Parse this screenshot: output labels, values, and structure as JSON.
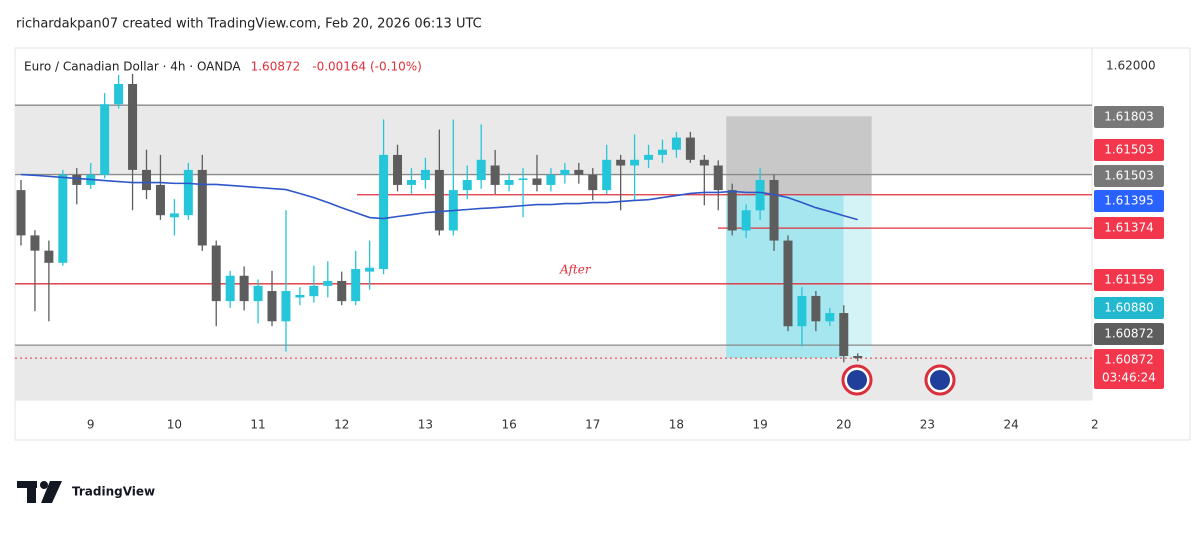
{
  "header": "richardakpan07 created with TradingView.com, Feb 20, 2026 06:13 UTC",
  "logo": "TradingView",
  "chart_data": {
    "type": "candlestick",
    "title": "Euro / Canadian Dollar · 4h · OANDA",
    "last_price": {
      "value": 1.60872,
      "label": "1.60872"
    },
    "change": "-0.00164 (-0.10%)",
    "annotation": "After",
    "up_color": "#26c6da",
    "down_color": "#5d5d5d",
    "xlim": [
      -0.43,
      76.8
    ],
    "ylim": [
      1.6071,
      1.6207
    ],
    "grid": false,
    "xticks": [
      {
        "value": 5,
        "label": "9"
      },
      {
        "value": 11,
        "label": "10"
      },
      {
        "value": 17,
        "label": "11"
      },
      {
        "value": 23,
        "label": "12"
      },
      {
        "value": 29,
        "label": "13"
      },
      {
        "value": 35,
        "label": "16"
      },
      {
        "value": 41,
        "label": "17"
      },
      {
        "value": 47,
        "label": "18"
      },
      {
        "value": 53,
        "label": "19"
      },
      {
        "value": 59,
        "label": "20"
      },
      {
        "value": 65,
        "label": "23"
      },
      {
        "value": 71,
        "label": "24"
      },
      {
        "value": 77,
        "label": "2"
      }
    ],
    "yticks": [
      {
        "value": 1.62,
        "label": "1.62000"
      }
    ],
    "open": [
      1.61521,
      1.61346,
      1.61287,
      1.6124,
      1.6158,
      1.61541,
      1.6158,
      1.61853,
      1.61931,
      1.61599,
      1.61541,
      1.61416,
      1.61424,
      1.61599,
      1.61307,
      1.61092,
      1.6119,
      1.61092,
      1.61131,
      1.61014,
      1.61106,
      1.61111,
      1.61151,
      1.6117,
      1.61092,
      1.61206,
      1.61216,
      1.61657,
      1.61541,
      1.6156,
      1.61599,
      1.61365,
      1.61521,
      1.6156,
      1.61616,
      1.61541,
      1.6156,
      1.61566,
      1.61541,
      1.6158,
      1.61599,
      1.6158,
      1.61521,
      1.61638,
      1.61616,
      1.61638,
      1.61657,
      1.61677,
      1.61724,
      1.61638,
      1.61616,
      1.61521,
      1.61365,
      1.61443,
      1.6156,
      1.61326,
      1.60995,
      1.61112,
      1.61014,
      1.61046,
      1.6088
    ],
    "high": [
      1.6156,
      1.61366,
      1.61326,
      1.61599,
      1.61606,
      1.61626,
      1.61896,
      1.61966,
      1.6197,
      1.61677,
      1.61657,
      1.61486,
      1.61626,
      1.61657,
      1.61326,
      1.61209,
      1.61226,
      1.61176,
      1.61209,
      1.61443,
      1.61146,
      1.61229,
      1.61246,
      1.61206,
      1.61286,
      1.61326,
      1.61794,
      1.61696,
      1.61606,
      1.61646,
      1.61755,
      1.61794,
      1.61616,
      1.61775,
      1.61676,
      1.61586,
      1.61606,
      1.61657,
      1.61606,
      1.61626,
      1.61626,
      1.61606,
      1.61696,
      1.61657,
      1.61736,
      1.61696,
      1.61716,
      1.61746,
      1.61746,
      1.61657,
      1.61636,
      1.61546,
      1.61466,
      1.61606,
      1.6158,
      1.61346,
      1.61146,
      1.61131,
      1.61066,
      1.61076,
      1.6089
    ],
    "low": [
      1.61307,
      1.61053,
      1.61014,
      1.61229,
      1.61466,
      1.61526,
      1.61566,
      1.61836,
      1.61443,
      1.61486,
      1.61406,
      1.61346,
      1.61406,
      1.61286,
      1.60995,
      1.61066,
      1.61056,
      1.61006,
      1.60995,
      1.60897,
      1.61076,
      1.61086,
      1.61106,
      1.61076,
      1.61076,
      1.61136,
      1.61196,
      1.61516,
      1.61506,
      1.61526,
      1.61346,
      1.61346,
      1.61486,
      1.61526,
      1.61506,
      1.61516,
      1.61416,
      1.61516,
      1.61516,
      1.61546,
      1.61546,
      1.61482,
      1.61506,
      1.61443,
      1.61482,
      1.61606,
      1.61626,
      1.61646,
      1.61626,
      1.61462,
      1.61443,
      1.61346,
      1.61336,
      1.61406,
      1.61286,
      1.60976,
      1.60917,
      1.60976,
      1.60996,
      1.60856,
      1.6086
    ],
    "close": [
      1.61346,
      1.61287,
      1.6124,
      1.6158,
      1.61541,
      1.6158,
      1.61853,
      1.61931,
      1.61599,
      1.61521,
      1.61424,
      1.61431,
      1.61599,
      1.61307,
      1.61092,
      1.6119,
      1.61092,
      1.61151,
      1.61014,
      1.61131,
      1.61116,
      1.61151,
      1.6117,
      1.61092,
      1.61216,
      1.61221,
      1.61657,
      1.61541,
      1.6156,
      1.61599,
      1.61365,
      1.61521,
      1.6156,
      1.61638,
      1.61541,
      1.6156,
      1.61566,
      1.61541,
      1.6158,
      1.61599,
      1.6158,
      1.61521,
      1.61638,
      1.61616,
      1.61638,
      1.61657,
      1.61677,
      1.61724,
      1.61638,
      1.61616,
      1.61521,
      1.61365,
      1.61443,
      1.6156,
      1.61326,
      1.60995,
      1.61112,
      1.61014,
      1.61046,
      1.6088,
      1.60872
    ],
    "moving_average": {
      "color": "#2f57c8",
      "values": [
        1.61581,
        1.61578,
        1.61574,
        1.6157,
        1.61566,
        1.61562,
        1.61558,
        1.61554,
        1.6155,
        1.6155,
        1.6155,
        1.61547,
        1.61547,
        1.61543,
        1.61543,
        1.61539,
        1.61535,
        1.61531,
        1.61527,
        1.61523,
        1.61508,
        1.61492,
        1.61473,
        1.61453,
        1.61434,
        1.61415,
        1.61411,
        1.61419,
        1.61426,
        1.61434,
        1.61438,
        1.61442,
        1.61446,
        1.6145,
        1.61453,
        1.61457,
        1.61461,
        1.61465,
        1.61465,
        1.61469,
        1.61469,
        1.61473,
        1.61473,
        1.61477,
        1.61481,
        1.61484,
        1.61492,
        1.615,
        1.61508,
        1.61512,
        1.61512,
        1.61516,
        1.61512,
        1.61512,
        1.61504,
        1.61492,
        1.61473,
        1.61453,
        1.61438,
        1.61422,
        1.61407
      ]
    },
    "levels": [
      {
        "value": 1.61849,
        "color": "#8a8a8a"
      },
      {
        "value": 1.61581,
        "color": "#8a8a8a"
      },
      {
        "value": 1.61503,
        "color": "#e0303c"
      },
      {
        "value": 1.61374,
        "color": "#e0303c"
      },
      {
        "value": 1.61159,
        "color": "#e0303c"
      },
      {
        "value": 1.60922,
        "color": "#8a8a8a"
      }
    ],
    "position": {
      "start": 51,
      "split": 59,
      "end": 61,
      "stop": 1.61806,
      "entry": 1.61503,
      "target": 1.60872
    },
    "price_badges": [
      {
        "value": 1.61803,
        "label": "1.61803",
        "color": "#787878"
      },
      {
        "value": 1.61503,
        "label": "1.61503",
        "color": "#f2364b"
      },
      {
        "value": 1.61503,
        "label": "1.61503",
        "color": "#787878"
      },
      {
        "value": 1.61395,
        "label": "1.61395",
        "color": "#2962ff"
      },
      {
        "value": 1.61374,
        "label": "1.61374",
        "color": "#f2364b"
      },
      {
        "value": 1.61159,
        "label": "1.61159",
        "color": "#f2364b"
      },
      {
        "value": 1.6088,
        "label": "1.60880",
        "color": "#22b8d0"
      },
      {
        "value": 1.60872,
        "label": "1.60872",
        "color": "#5d5d5d"
      },
      {
        "value": 1.60872,
        "label": "1.60872",
        "color": "#f2364b",
        "countdown": "03:46:24"
      }
    ]
  }
}
